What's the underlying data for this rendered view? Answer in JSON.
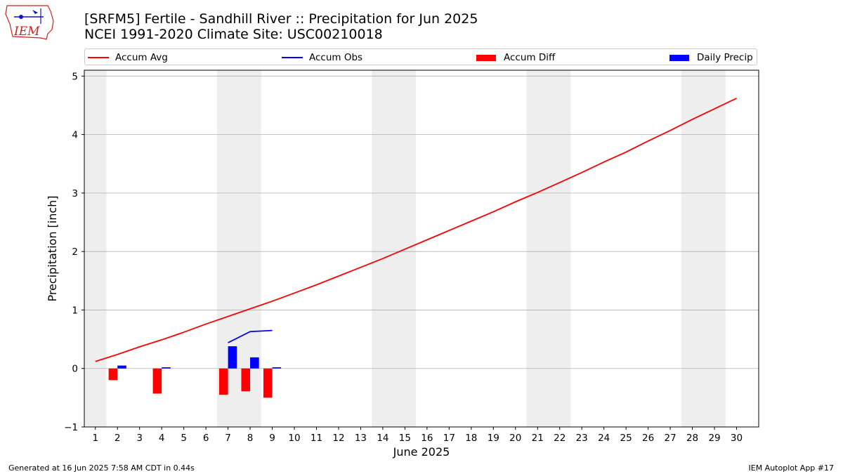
{
  "header": {
    "title_line1": "[SRFM5] Fertile - Sandhill River :: Precipitation for Jun 2025",
    "title_line2": "NCEI 1991-2020 Climate Site: USC00210018"
  },
  "logo": {
    "text": "IEM"
  },
  "footer": {
    "left": "Generated at 16 Jun 2025 7:58 AM CDT in 0.44s",
    "right": "IEM Autoplot App #17"
  },
  "colors": {
    "avg": "#ff0000",
    "obs": "#0000ff",
    "diff": "#ff0000",
    "daily": "#0000ff",
    "weekend": "#eeeeee",
    "grid": "#b0b0b0"
  },
  "chart_data": {
    "type": "line",
    "xlabel": "June 2025",
    "ylabel": "Precipitation [inch]",
    "xlim": [
      0.5,
      31.0
    ],
    "ylim": [
      -1,
      5.1
    ],
    "x_ticks": [
      "1",
      "2",
      "3",
      "4",
      "5",
      "6",
      "7",
      "8",
      "9",
      "10",
      "11",
      "12",
      "13",
      "14",
      "15",
      "16",
      "17",
      "18",
      "19",
      "20",
      "21",
      "22",
      "23",
      "24",
      "25",
      "26",
      "27",
      "28",
      "29",
      "30"
    ],
    "y_ticks": [
      -1,
      0,
      1,
      2,
      3,
      4,
      5
    ],
    "y_tick_labels": [
      "−1",
      "0",
      "1",
      "2",
      "3",
      "4",
      "5"
    ],
    "grid": "horizontal",
    "weekend_shading": [
      [
        0.5,
        1.5
      ],
      [
        6.5,
        8.5
      ],
      [
        13.5,
        15.5
      ],
      [
        20.5,
        22.5
      ],
      [
        27.5,
        29.5
      ]
    ],
    "legend": [
      "Accum Avg",
      "Accum Obs",
      "Accum Diff",
      "Daily Precip"
    ],
    "legend_location": "top",
    "series": [
      {
        "name": "Accum Avg",
        "type": "line",
        "x": [
          1,
          2,
          3,
          4,
          5,
          6,
          7,
          8,
          9,
          10,
          11,
          12,
          13,
          14,
          15,
          16,
          17,
          18,
          19,
          20,
          21,
          22,
          23,
          24,
          25,
          26,
          27,
          28,
          29,
          30
        ],
        "values": [
          0.12,
          0.24,
          0.37,
          0.49,
          0.62,
          0.76,
          0.89,
          1.02,
          1.15,
          1.29,
          1.43,
          1.58,
          1.73,
          1.88,
          2.04,
          2.2,
          2.36,
          2.52,
          2.68,
          2.85,
          3.01,
          3.18,
          3.35,
          3.53,
          3.7,
          3.89,
          4.07,
          4.26,
          4.44,
          4.62
        ]
      },
      {
        "name": "Accum Obs",
        "type": "line",
        "x": [
          7,
          8,
          9
        ],
        "values": [
          0.44,
          0.63,
          0.65
        ]
      },
      {
        "name": "Accum Diff",
        "type": "bar",
        "x": [
          2,
          4,
          7,
          8,
          9
        ],
        "values": [
          -0.2,
          -0.43,
          -0.45,
          -0.39,
          -0.5
        ]
      },
      {
        "name": "Daily Precip",
        "type": "bar",
        "x": [
          2,
          4,
          7,
          8,
          9
        ],
        "values": [
          0.05,
          0.02,
          0.38,
          0.19,
          0.02
        ]
      }
    ]
  }
}
